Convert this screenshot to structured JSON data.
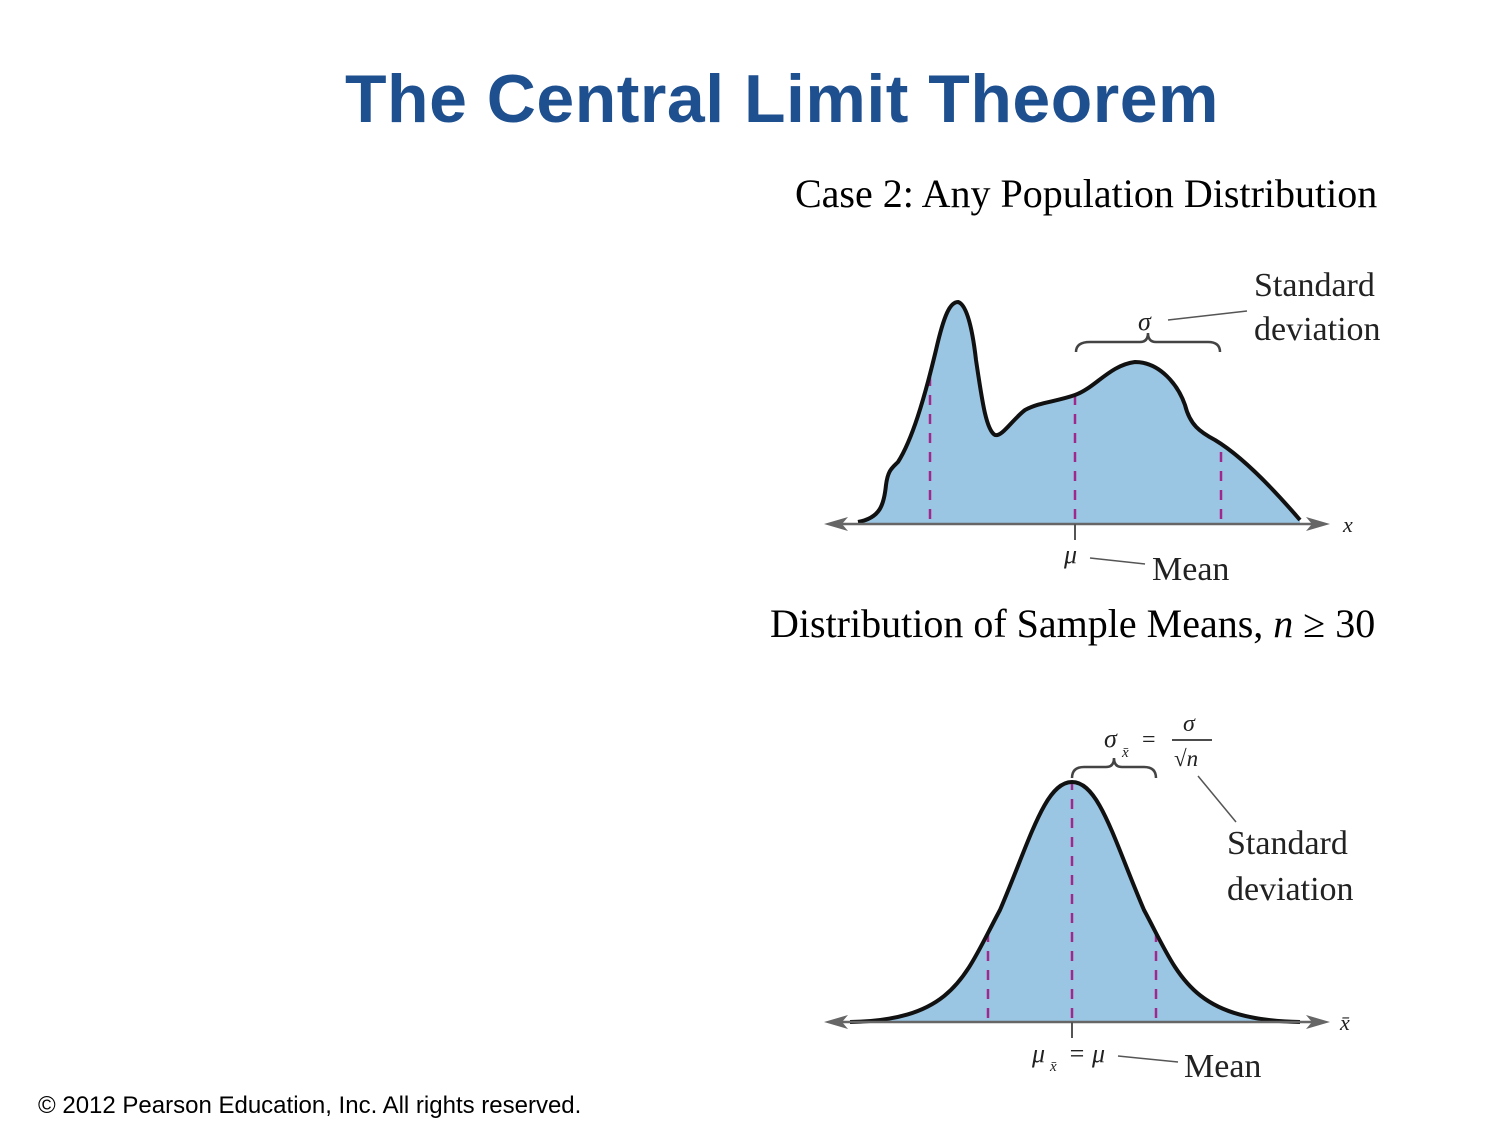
{
  "title": "The Central Limit Theorem",
  "case_label": "Case 2: Any Population Distribution",
  "population": {
    "sigma_symbol": "σ",
    "sd_line1": "Standard",
    "sd_line2": "deviation",
    "mu_symbol": "μ",
    "mean_label": "Mean",
    "axis_label": "x"
  },
  "sampling": {
    "heading_prefix": "Distribution of Sample Means, ",
    "heading_n": "n",
    "heading_suffix": " ≥ 30",
    "sigma_xbar": "σ",
    "xbar_sub": "x̄",
    "equals": "=",
    "frac_num": "σ",
    "frac_den": "√n",
    "sd_line1": "Standard",
    "sd_line2": "deviation",
    "mu_xbar": "μ",
    "mu_eq": "= μ",
    "mean_label": "Mean",
    "axis_label": "x̄"
  },
  "colors": {
    "title": "#1e4f8f",
    "fill": "#9ac6e3",
    "dash": "#a0288c",
    "curve": "#111111"
  },
  "copyright": "© 2012 Pearson Education, Inc. All rights reserved."
}
